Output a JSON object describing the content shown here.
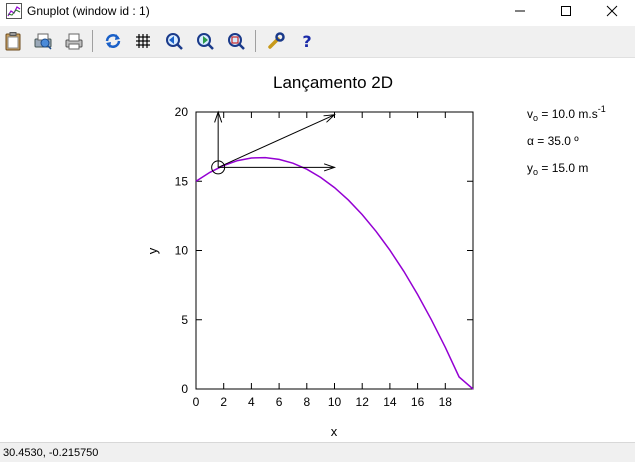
{
  "window": {
    "title": "Gnuplot (window id : 1)"
  },
  "toolbar": {
    "buttons": [
      {
        "name": "copy-clipboard",
        "icon": "clipboard-icon"
      },
      {
        "name": "print-preview",
        "icon": "printer-icon"
      },
      {
        "name": "print",
        "icon": "printer-icon"
      },
      {
        "name": "replot",
        "icon": "refresh-icon"
      },
      {
        "name": "grid",
        "icon": "grid-icon"
      },
      {
        "name": "zoom-previous",
        "icon": "zoom-prev-icon"
      },
      {
        "name": "zoom-next",
        "icon": "zoom-next-icon"
      },
      {
        "name": "autoscale",
        "icon": "zoom-fit-icon"
      },
      {
        "name": "options",
        "icon": "wrench-icon"
      },
      {
        "name": "help",
        "icon": "help-icon"
      }
    ]
  },
  "plot": {
    "title": "Lançamento 2D",
    "xlabel": "x",
    "ylabel": "y",
    "xticks": [
      "0",
      "2",
      "4",
      "6",
      "8",
      "10",
      "12",
      "14",
      "16",
      "18"
    ],
    "yticks": [
      "0",
      "5",
      "10",
      "15",
      "20"
    ],
    "labels": {
      "v0_prefix": "v",
      "v0_sub": "o",
      "v0_value": " = 10.0 m.s",
      "v0_sup": "-1",
      "angle": "α = 35.0 º",
      "y0_prefix": "y",
      "y0_sub": "o",
      "y0_value": " = 15.0 m"
    },
    "curve_color": "#9400d3"
  },
  "chart_data": {
    "type": "line",
    "title": "Lançamento 2D",
    "xlabel": "x",
    "ylabel": "y",
    "xlim": [
      0,
      20
    ],
    "ylim": [
      0,
      20
    ],
    "series": [
      {
        "x": [
          0,
          1,
          2,
          3,
          4,
          5,
          6,
          7,
          8,
          9,
          10,
          11,
          12,
          13,
          14,
          15,
          16,
          17,
          18,
          19,
          20
        ],
        "values": [
          15.0,
          15.64,
          16.14,
          16.49,
          16.68,
          16.71,
          16.58,
          16.3,
          15.87,
          15.28,
          14.54,
          13.64,
          12.59,
          11.38,
          10.02,
          8.5,
          6.82,
          5.0,
          3.01,
          0.87,
          0.0
        ]
      }
    ],
    "markers": {
      "ball": {
        "x": 1.6,
        "y": 16.0
      },
      "vectors": [
        {
          "from": [
            1.6,
            16.0
          ],
          "to": [
            10.0,
            16.0
          ]
        },
        {
          "from": [
            1.6,
            16.0
          ],
          "to": [
            1.6,
            20.0
          ]
        },
        {
          "from": [
            1.6,
            16.0
          ],
          "to": [
            10.0,
            19.8
          ]
        }
      ]
    }
  },
  "status": {
    "coords": "30.4530, -0.215750"
  }
}
